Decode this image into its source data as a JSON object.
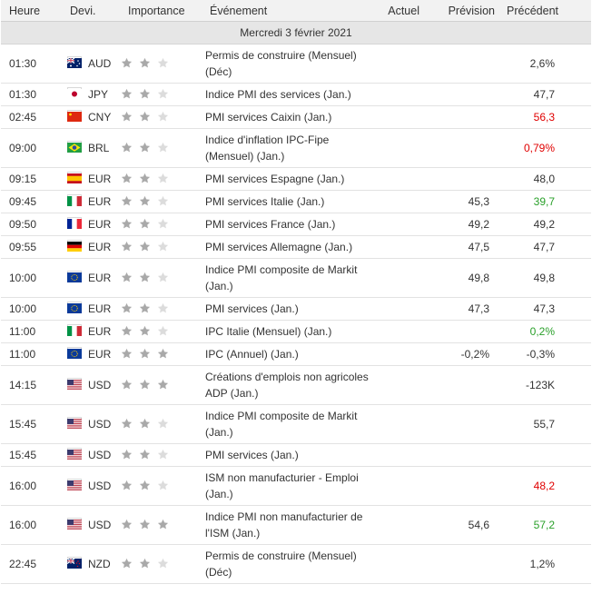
{
  "headers": {
    "time": "Heure",
    "currency": "Devi.",
    "importance": "Importance",
    "event": "Événement",
    "actual": "Actuel",
    "forecast": "Prévision",
    "previous": "Précédent"
  },
  "date_label": "Mercredi 3 février 2021",
  "colors": {
    "star_on": "#a9a9a9",
    "star_off": "#dcdcdc",
    "negative": "#e00000",
    "positive": "#2aa02a"
  },
  "rows": [
    {
      "time": "01:30",
      "flag": "au",
      "currency": "AUD",
      "stars": 2,
      "event": "Permis de construire (Mensuel) (Déc)",
      "actual": "",
      "forecast": "",
      "previous": "2,6%",
      "prev_color": "",
      "tall": true
    },
    {
      "time": "01:30",
      "flag": "jp",
      "currency": "JPY",
      "stars": 2,
      "event": "Indice PMI des services (Jan.)",
      "actual": "",
      "forecast": "",
      "previous": "47,7",
      "prev_color": "",
      "tall": false
    },
    {
      "time": "02:45",
      "flag": "cn",
      "currency": "CNY",
      "stars": 2,
      "event": "PMI services Caixin (Jan.)",
      "actual": "",
      "forecast": "",
      "previous": "56,3",
      "prev_color": "red",
      "tall": false
    },
    {
      "time": "09:00",
      "flag": "br",
      "currency": "BRL",
      "stars": 2,
      "event": "Indice d'inflation IPC-Fipe (Mensuel) (Jan.)",
      "actual": "",
      "forecast": "",
      "previous": "0,79%",
      "prev_color": "red",
      "tall": true
    },
    {
      "time": "09:15",
      "flag": "es",
      "currency": "EUR",
      "stars": 2,
      "event": "PMI services Espagne (Jan.)",
      "actual": "",
      "forecast": "",
      "previous": "48,0",
      "prev_color": "",
      "tall": false
    },
    {
      "time": "09:45",
      "flag": "it",
      "currency": "EUR",
      "stars": 2,
      "event": "PMI services Italie (Jan.)",
      "actual": "",
      "forecast": "45,3",
      "previous": "39,7",
      "prev_color": "green",
      "tall": false
    },
    {
      "time": "09:50",
      "flag": "fr",
      "currency": "EUR",
      "stars": 2,
      "event": "PMI services France (Jan.)",
      "actual": "",
      "forecast": "49,2",
      "previous": "49,2",
      "prev_color": "",
      "tall": false
    },
    {
      "time": "09:55",
      "flag": "de",
      "currency": "EUR",
      "stars": 2,
      "event": "PMI services Allemagne (Jan.)",
      "actual": "",
      "forecast": "47,5",
      "previous": "47,7",
      "prev_color": "",
      "tall": false
    },
    {
      "time": "10:00",
      "flag": "eu",
      "currency": "EUR",
      "stars": 2,
      "event": "Indice PMI composite de Markit (Jan.)",
      "actual": "",
      "forecast": "49,8",
      "previous": "49,8",
      "prev_color": "",
      "tall": true
    },
    {
      "time": "10:00",
      "flag": "eu",
      "currency": "EUR",
      "stars": 2,
      "event": "PMI services (Jan.)",
      "actual": "",
      "forecast": "47,3",
      "previous": "47,3",
      "prev_color": "",
      "tall": false
    },
    {
      "time": "11:00",
      "flag": "it",
      "currency": "EUR",
      "stars": 2,
      "event": "IPC Italie (Mensuel) (Jan.)",
      "actual": "",
      "forecast": "",
      "previous": "0,2%",
      "prev_color": "green",
      "tall": false
    },
    {
      "time": "11:00",
      "flag": "eu",
      "currency": "EUR",
      "stars": 3,
      "event": "IPC (Annuel) (Jan.)",
      "actual": "",
      "forecast": "-0,2%",
      "previous": "-0,3%",
      "prev_color": "",
      "tall": false
    },
    {
      "time": "14:15",
      "flag": "us",
      "currency": "USD",
      "stars": 3,
      "event": "Créations d'emplois non agricoles ADP (Jan.)",
      "actual": "",
      "forecast": "",
      "previous": "-123K",
      "prev_color": "",
      "tall": true
    },
    {
      "time": "15:45",
      "flag": "us",
      "currency": "USD",
      "stars": 2,
      "event": "Indice PMI composite de Markit (Jan.)",
      "actual": "",
      "forecast": "",
      "previous": "55,7",
      "prev_color": "",
      "tall": true
    },
    {
      "time": "15:45",
      "flag": "us",
      "currency": "USD",
      "stars": 2,
      "event": "PMI services (Jan.)",
      "actual": "",
      "forecast": "",
      "previous": "",
      "prev_color": "",
      "tall": false
    },
    {
      "time": "16:00",
      "flag": "us",
      "currency": "USD",
      "stars": 2,
      "event": "ISM non manufacturier - Emploi (Jan.)",
      "actual": "",
      "forecast": "",
      "previous": "48,2",
      "prev_color": "red",
      "tall": true
    },
    {
      "time": "16:00",
      "flag": "us",
      "currency": "USD",
      "stars": 3,
      "event": "Indice PMI non manufacturier de l'ISM (Jan.)",
      "actual": "",
      "forecast": "54,6",
      "previous": "57,2",
      "prev_color": "green",
      "tall": true
    },
    {
      "time": "22:45",
      "flag": "nz",
      "currency": "NZD",
      "stars": 2,
      "event": "Permis de construire (Mensuel) (Déc)",
      "actual": "",
      "forecast": "",
      "previous": "1,2%",
      "prev_color": "",
      "tall": true
    }
  ]
}
